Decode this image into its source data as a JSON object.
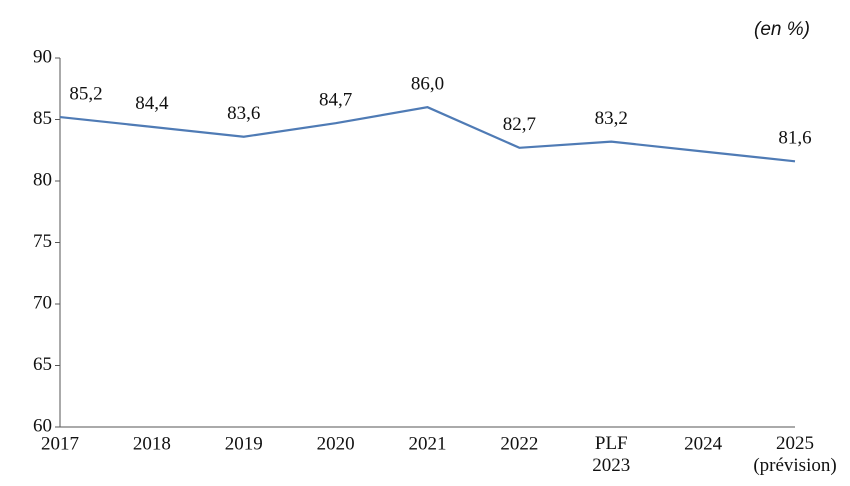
{
  "chart_data": {
    "type": "line",
    "annotation": "(en %)",
    "categories": [
      "2017",
      "2018",
      "2019",
      "2020",
      "2021",
      "2022",
      "PLF 2023",
      "2024",
      "2025 (prévision)"
    ],
    "series": [
      {
        "color": "#4f7bb5",
        "values": [
          85.2,
          84.4,
          83.6,
          84.7,
          86.0,
          82.7,
          83.2,
          82.4,
          81.6
        ],
        "value_labels": [
          "85,2",
          "84,4",
          "83,6",
          "84,7",
          "86,0",
          "82,7",
          "83,2",
          null,
          "81,6"
        ]
      }
    ],
    "ylim": [
      60,
      90
    ],
    "yticks": [
      60,
      65,
      70,
      75,
      80,
      85,
      90
    ],
    "grid": false
  }
}
